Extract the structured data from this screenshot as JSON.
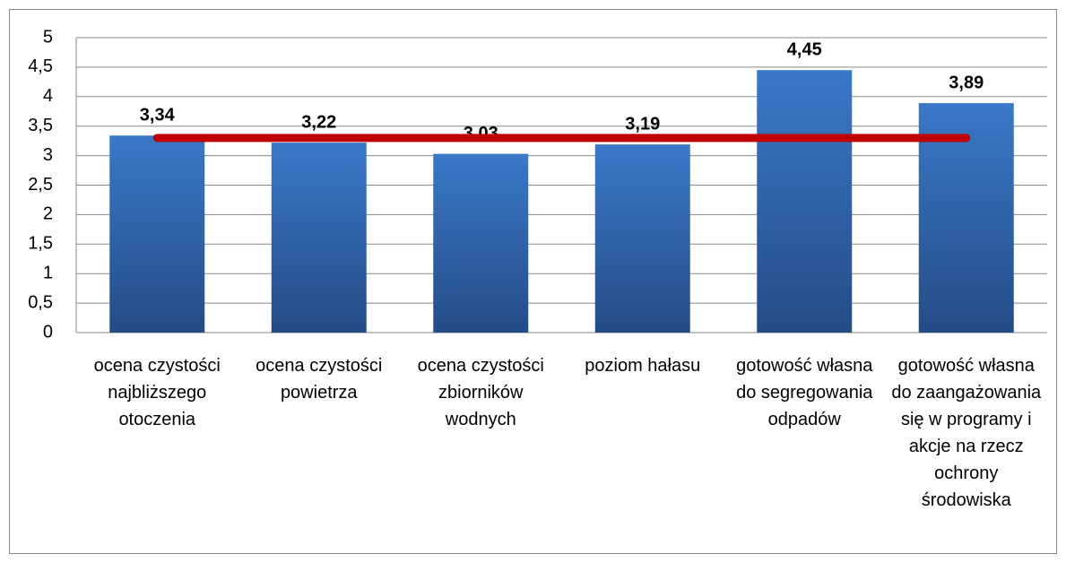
{
  "chart_data": {
    "type": "bar",
    "categories": [
      "ocena czystości najbliższego otoczenia",
      "ocena czystości powietrza",
      "ocena czystości zbiorników wodnych",
      "poziom hałasu",
      "gotowość własna do segregowania odpadów",
      "gotowość własna do zaangażowania się w programy i akcje na rzecz ochrony środowiska"
    ],
    "series": [
      {
        "type": "bar",
        "color": "#3068b0",
        "values": [
          3.34,
          3.22,
          3.03,
          3.19,
          4.45,
          3.89
        ],
        "value_labels": [
          "3,34",
          "3,22",
          "3,03",
          "3,19",
          "4,45",
          "3,89"
        ]
      },
      {
        "type": "line",
        "color": "#c00000",
        "values": [
          3.3,
          3.3,
          3.3,
          3.3,
          3.3,
          3.3
        ]
      }
    ],
    "ylim": [
      0,
      5
    ],
    "yticks": [
      0,
      {
        "value": 0.5,
        "label": "0,5"
      },
      1,
      {
        "value": 1.5,
        "label": "1,5"
      },
      2,
      {
        "value": 2.5,
        "label": "2,5"
      },
      3,
      {
        "value": 3.5,
        "label": "3,5"
      },
      4,
      {
        "value": 4.5,
        "label": "4,5"
      },
      5
    ],
    "grid": true
  }
}
